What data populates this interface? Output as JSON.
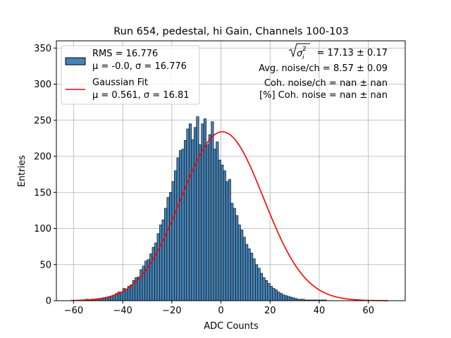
{
  "chart_data": {
    "type": "bar",
    "title": "Run 654, pedestal, hi Gain, Channels 100-103",
    "xlabel": "ADC Counts",
    "ylabel": "Entries",
    "xlim": [
      -67,
      75
    ],
    "ylim": [
      0,
      360
    ],
    "grid": true,
    "x_ticks": [
      -60,
      -40,
      -20,
      0,
      20,
      40,
      60
    ],
    "y_ticks": [
      0,
      50,
      100,
      150,
      200,
      250,
      300,
      350
    ],
    "histogram": {
      "name": "RMS = 16.776",
      "stats_label": "μ = -0.0, σ = 16.776",
      "color": "#4682b4",
      "edge_color": "#000000",
      "bin_width": 1,
      "x_start": -63,
      "counts": [
        0,
        0,
        0,
        0,
        0,
        0,
        1,
        1,
        2,
        1,
        1,
        2,
        2,
        3,
        3,
        4,
        4,
        5,
        6,
        8,
        10,
        12,
        12,
        17,
        16,
        20,
        22,
        28,
        32,
        33,
        43,
        48,
        55,
        57,
        65,
        74,
        80,
        93,
        105,
        112,
        128,
        143,
        150,
        165,
        180,
        198,
        208,
        210,
        222,
        238,
        245,
        223,
        240,
        255,
        216,
        245,
        252,
        216,
        230,
        248,
        210,
        220,
        195,
        188,
        180,
        165,
        168,
        135,
        128,
        118,
        105,
        98,
        88,
        78,
        72,
        66,
        58,
        50,
        45,
        38,
        32,
        28,
        24,
        20,
        17,
        15,
        12,
        10,
        8,
        7,
        6,
        5,
        4,
        3,
        2,
        2,
        2,
        1,
        1,
        1,
        1,
        1,
        1,
        1,
        1,
        1,
        0,
        0,
        0,
        0,
        0,
        0,
        0,
        0,
        0,
        0,
        0,
        0,
        0,
        0,
        0,
        0,
        0,
        0,
        0,
        0,
        0,
        0,
        0,
        0,
        0,
        0,
        0
      ]
    },
    "fit": {
      "name": "Gaussian Fit",
      "stats_label": "μ = 0.561, σ = 16.81",
      "mu": 0.561,
      "sigma": 16.81,
      "amplitude": 234,
      "x_range": [
        -61,
        68
      ],
      "color": "#ff0000"
    },
    "annotations": [
      {
        "text": "= 17.13 ± 0.17",
        "has_sqrt_prefix": true
      },
      {
        "text": "Avg. noise/ch = 8.57 ± 0.09"
      },
      {
        "text": "Coh. noise/ch = nan ± nan"
      },
      {
        "text": "[%] Coh. noise = nan ± nan"
      }
    ],
    "sqrt_symbol": {
      "radicand": "σ",
      "subscript": "i",
      "superscript": "2"
    },
    "legend_position": "top-left"
  }
}
